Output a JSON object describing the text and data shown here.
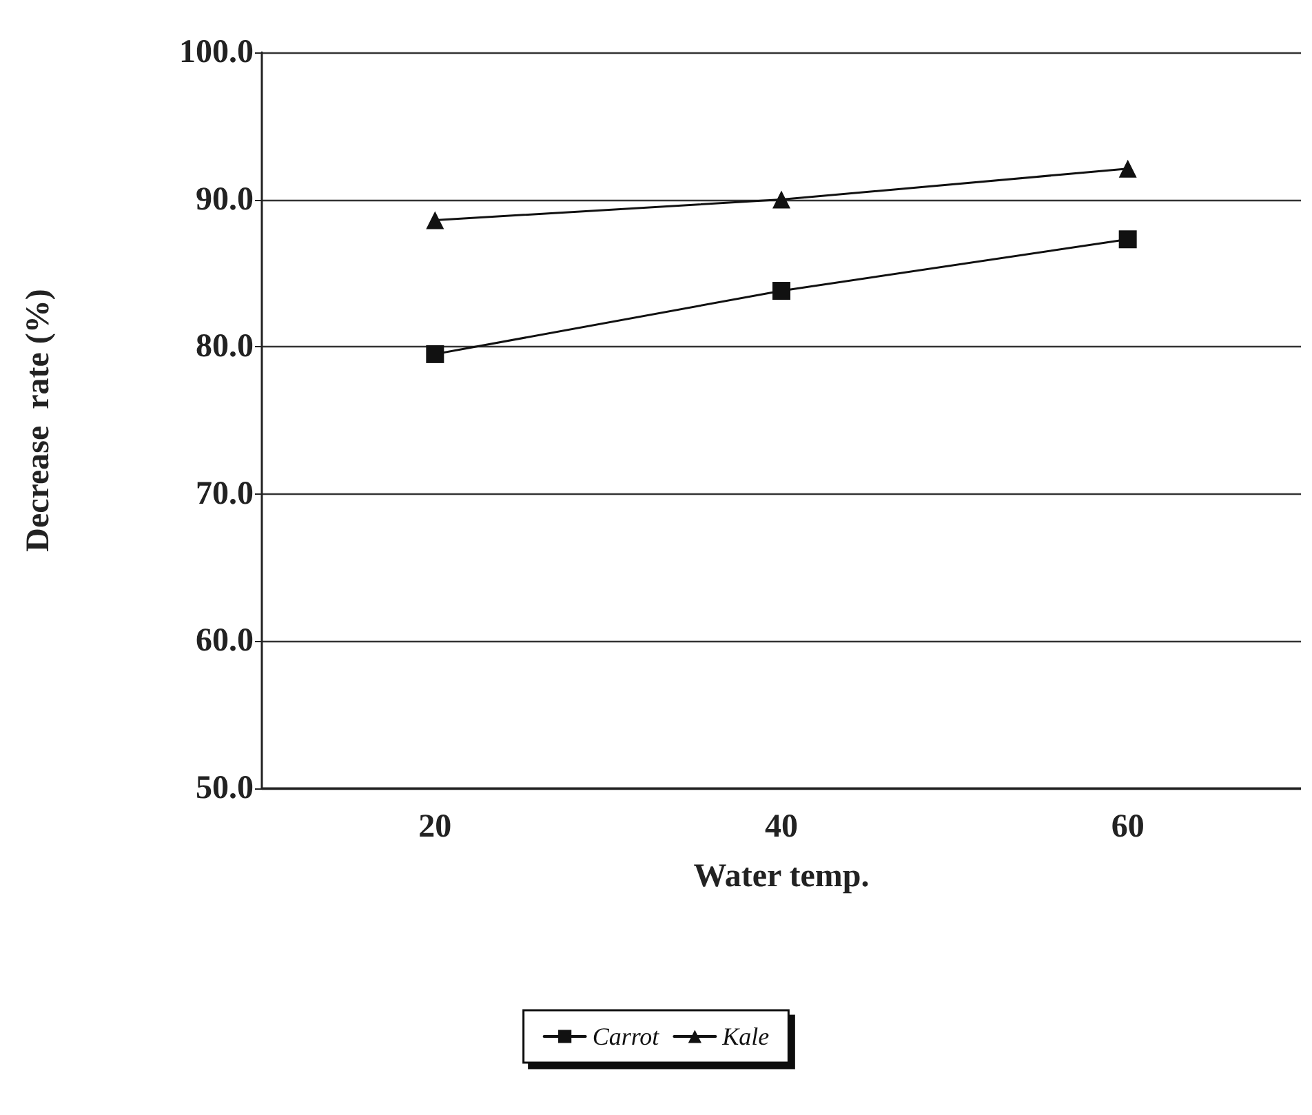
{
  "chart_data": {
    "type": "line",
    "xlabel": "Water temp.",
    "ylabel": "Decrease  rate (%)",
    "categories": [
      "20",
      "40",
      "60"
    ],
    "series": [
      {
        "name": "Carrot",
        "color": "#111111",
        "marker": "square",
        "values": [
          79.5,
          83.8,
          87.3
        ]
      },
      {
        "name": "Kale",
        "color": "#111111",
        "marker": "triangle",
        "values": [
          88.6,
          90.0,
          92.1
        ]
      }
    ],
    "ylim": [
      50,
      100
    ],
    "yticks": [
      {
        "value": 50,
        "label": "50.0"
      },
      {
        "value": 60,
        "label": "60.0"
      },
      {
        "value": 70,
        "label": "70.0"
      },
      {
        "value": 80,
        "label": "80.0"
      },
      {
        "value": 90,
        "label": "90.0"
      },
      {
        "value": 100,
        "label": "100.0"
      }
    ],
    "grid": "y",
    "legend": "bottom",
    "line_style": "solid"
  }
}
